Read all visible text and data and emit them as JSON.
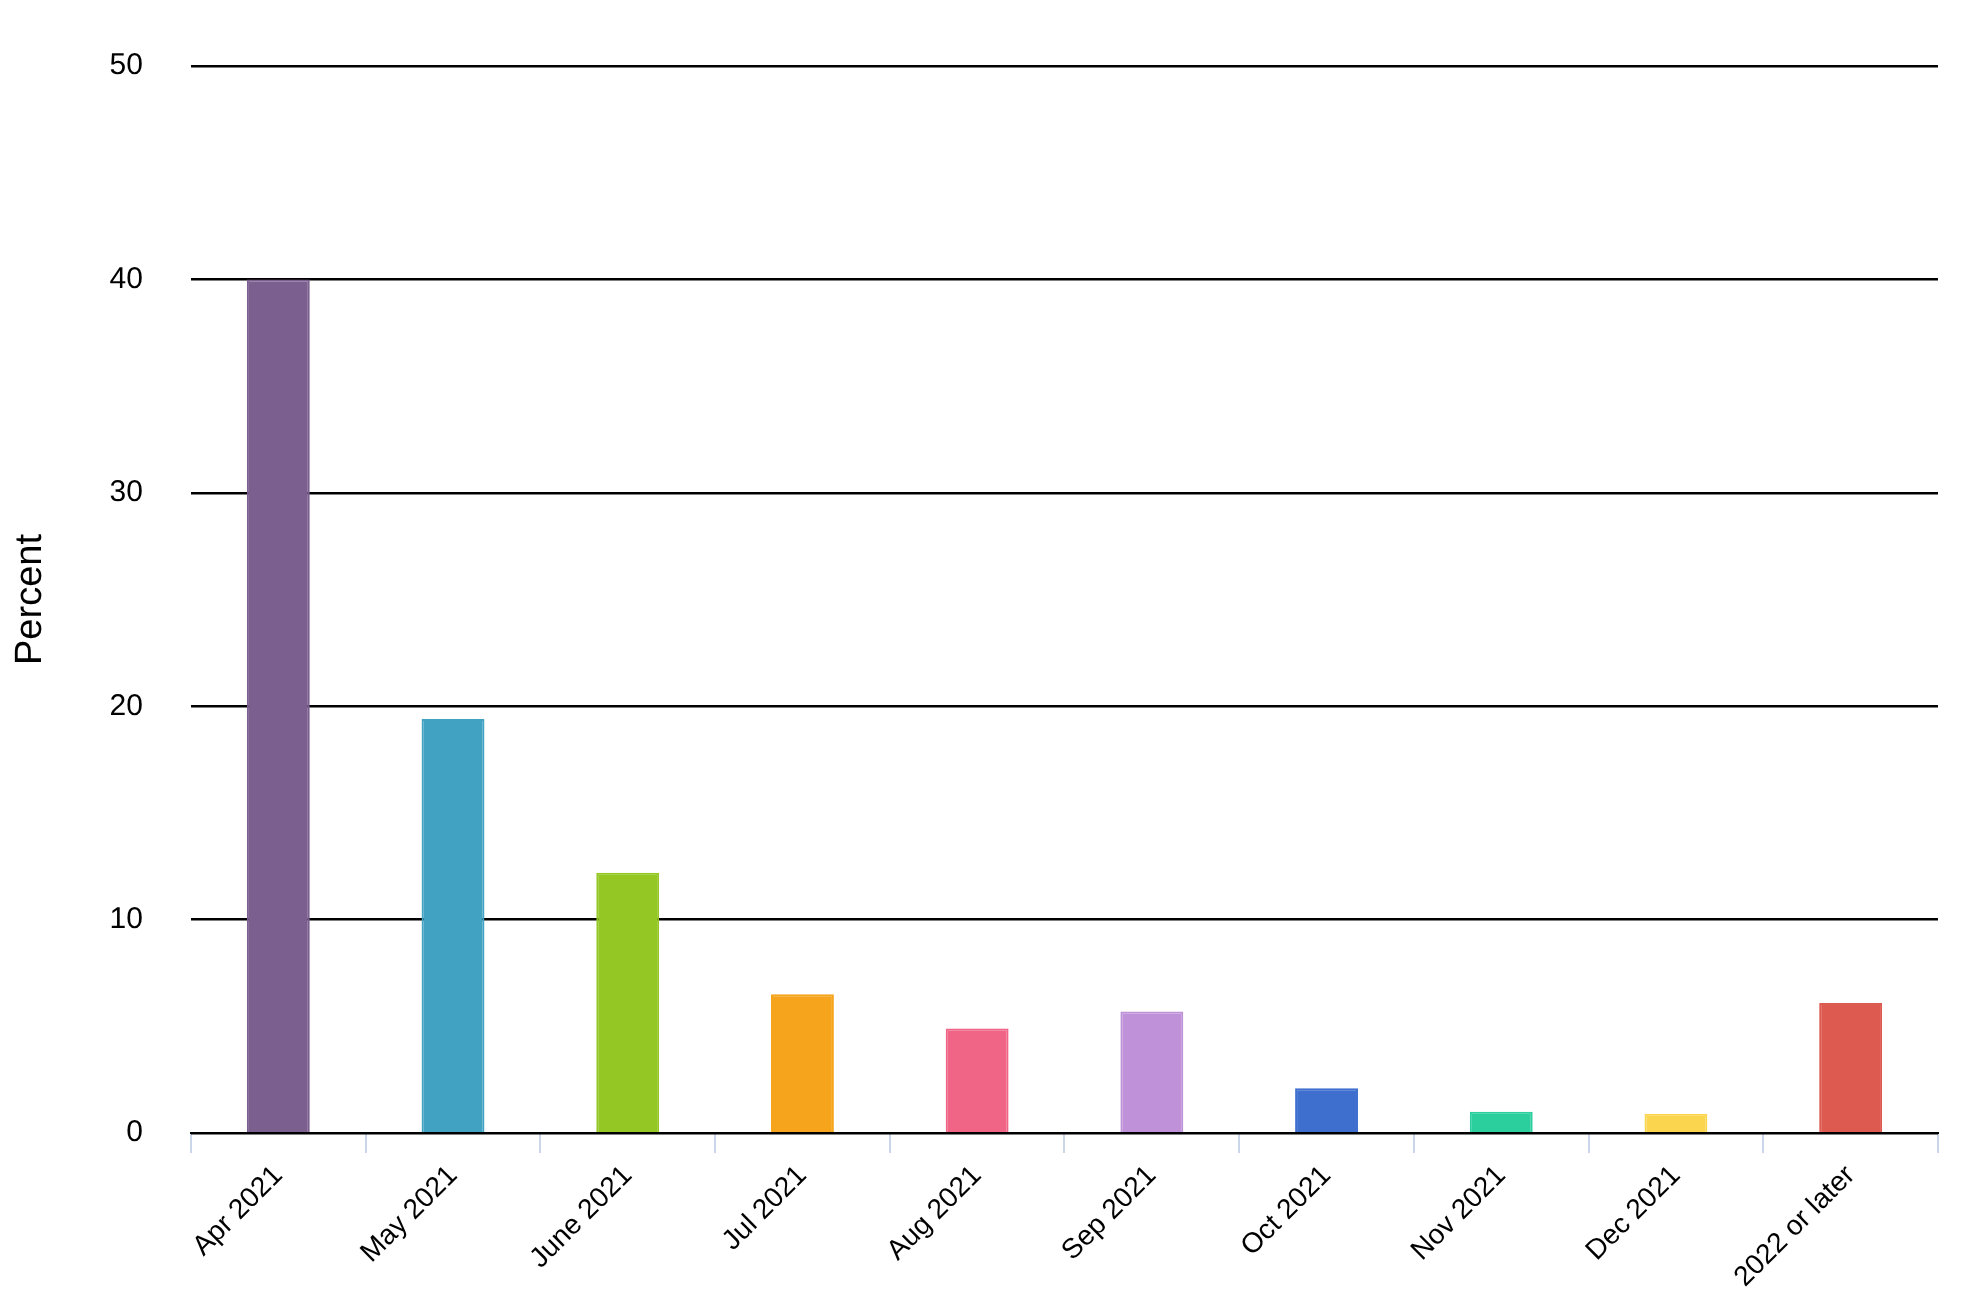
{
  "chart_data": {
    "type": "bar",
    "ylabel": "Percent",
    "categories": [
      "Apr 2021",
      "May 2021",
      "June 2021",
      "Jul 2021",
      "Aug 2021",
      "Sep 2021",
      "Oct 2021",
      "Nov 2021",
      "Dec 2021",
      "2022 or later"
    ],
    "values": [
      40,
      19.4,
      12.2,
      6.5,
      4.9,
      5.7,
      2.1,
      1.0,
      0.9,
      6.1
    ],
    "colors": [
      "#7b5f8f",
      "#41a2c2",
      "#95c724",
      "#f5a41b",
      "#f06586",
      "#bf91d9",
      "#3e6fce",
      "#2bcf9e",
      "#fcd54e",
      "#dd5a50"
    ],
    "ylim": [
      0,
      50
    ],
    "yticks": [
      0,
      10,
      20,
      30,
      40,
      50
    ],
    "grid": "y",
    "legend": false
  }
}
